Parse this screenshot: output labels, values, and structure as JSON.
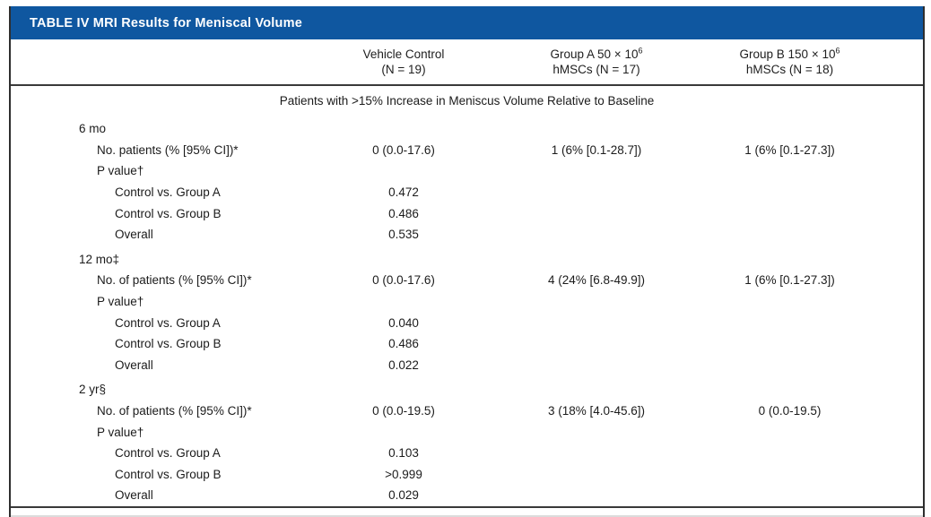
{
  "title": "TABLE IV MRI Results for Meniscal Volume",
  "colors": {
    "title_bar_background": "#0f57a0",
    "title_text": "#ffffff",
    "rule_lines": "#3a3a3a",
    "body_text": "#1b1b1b"
  },
  "header": {
    "columns": [
      {
        "line1": "Vehicle Control",
        "line2": "(N = 19)"
      },
      {
        "line1_base": "Group A 50 × 10",
        "line1_sup": "6",
        "line2": "hMSCs (N = 17)"
      },
      {
        "line1_base": "Group B 150 × 10",
        "line1_sup": "6",
        "line2": "hMSCs (N = 18)"
      }
    ]
  },
  "body": {
    "subtitle": "Patients with >15% Increase in Meniscus Volume Relative to Baseline",
    "rows": [
      {
        "type": "section",
        "label": "6 mo",
        "values": [
          "",
          "",
          ""
        ]
      },
      {
        "type": "data",
        "label": "No. patients (% [95% CI])*",
        "values": [
          "0 (0.0-17.6)",
          "1 (6% [0.1-28.7])",
          "1 (6% [0.1-27.3])"
        ]
      },
      {
        "type": "group",
        "label": "P value†",
        "values": [
          "",
          "",
          ""
        ]
      },
      {
        "type": "sub",
        "label": "Control vs. Group A",
        "values": [
          "0.472",
          "",
          ""
        ]
      },
      {
        "type": "sub",
        "label": "Control vs. Group B",
        "values": [
          "0.486",
          "",
          ""
        ]
      },
      {
        "type": "sub",
        "label": "Overall",
        "values": [
          "0.535",
          "",
          ""
        ]
      },
      {
        "type": "section",
        "label": "12 mo‡",
        "values": [
          "",
          "",
          ""
        ]
      },
      {
        "type": "data",
        "label": "No. of patients (% [95% CI])*",
        "values": [
          "0 (0.0-17.6)",
          "4 (24% [6.8-49.9])",
          "1 (6% [0.1-27.3])"
        ]
      },
      {
        "type": "group",
        "label": "P value†",
        "values": [
          "",
          "",
          ""
        ]
      },
      {
        "type": "sub",
        "label": "Control vs. Group A",
        "values": [
          "0.040",
          "",
          ""
        ]
      },
      {
        "type": "sub",
        "label": "Control vs. Group B",
        "values": [
          "0.486",
          "",
          ""
        ]
      },
      {
        "type": "sub",
        "label": "Overall",
        "values": [
          "0.022",
          "",
          ""
        ]
      },
      {
        "type": "section",
        "label": "2 yr§",
        "values": [
          "",
          "",
          ""
        ]
      },
      {
        "type": "data",
        "label": "No. of patients (% [95% CI])*",
        "values": [
          "0 (0.0-19.5)",
          "3 (18% [4.0-45.6])",
          "0 (0.0-19.5)"
        ]
      },
      {
        "type": "group",
        "label": "P value†",
        "values": [
          "",
          "",
          ""
        ]
      },
      {
        "type": "sub",
        "label": "Control vs. Group A",
        "values": [
          "0.103",
          "",
          ""
        ]
      },
      {
        "type": "sub",
        "label": "Control vs. Group B",
        "values": [
          ">0.999",
          "",
          ""
        ]
      },
      {
        "type": "sub",
        "label": "Overall",
        "values": [
          "0.029",
          "",
          ""
        ]
      }
    ]
  }
}
